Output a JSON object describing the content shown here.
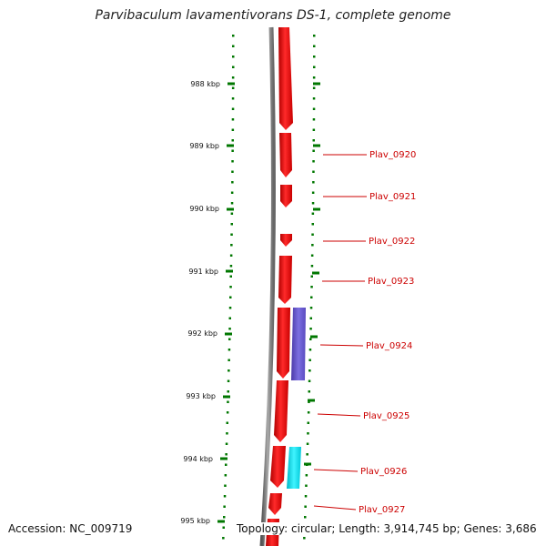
{
  "title": "Parvibaculum lavamentivorans DS-1, complete genome",
  "footer": {
    "accession": "Accession: NC_009719",
    "summary": "Topology: circular; Length: 3,914,745 bp; Genes: 3,686"
  },
  "colors": {
    "background": "#ffffff",
    "backbone": "#808080",
    "gene_forward": "#ff0000",
    "gene_reverse_purple": "#6a5acd",
    "gene_reverse_cyan": "#00e5ee",
    "tick": "#007700",
    "label": "#cc0000"
  },
  "kbp_labels": [
    "988 kbp",
    "989 kbp",
    "990 kbp",
    "991 kbp",
    "992 kbp",
    "993 kbp",
    "994 kbp",
    "995 kbp"
  ],
  "gene_labels": [
    "Plav_0920",
    "Plav_0921",
    "Plav_0922",
    "Plav_0923",
    "Plav_0924",
    "Plav_0925",
    "Plav_0926",
    "Plav_0927"
  ]
}
